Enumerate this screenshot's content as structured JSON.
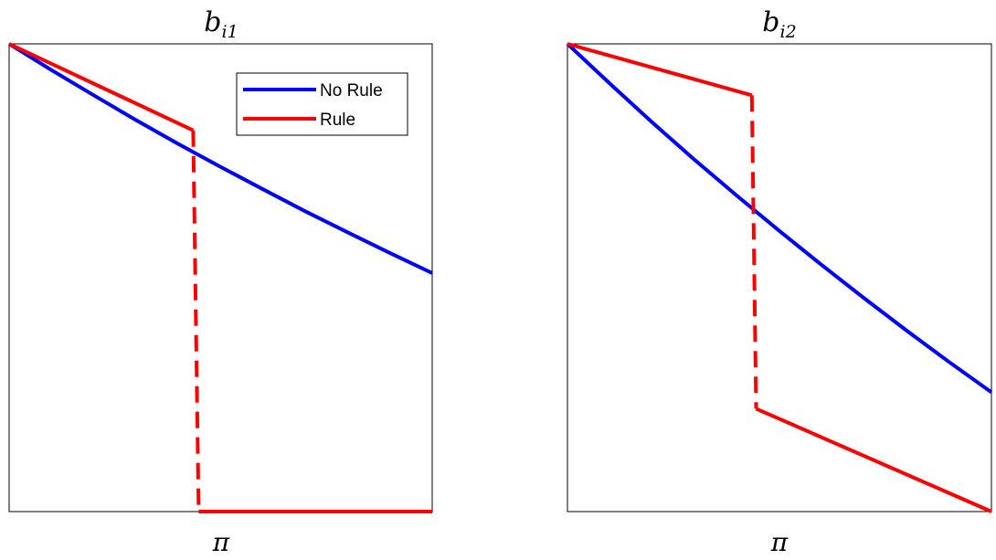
{
  "chart_data": [
    {
      "type": "line",
      "title_main": "b",
      "title_sub": "i1",
      "xlabel": "π",
      "ylabel": "",
      "xlim": [
        0,
        1
      ],
      "ylim": [
        0,
        1
      ],
      "ticks": false,
      "grid": false,
      "legend": {
        "placement": "top-right",
        "entries": [
          {
            "name": "No Rule",
            "color": "#0000ff"
          },
          {
            "name": "Rule",
            "color": "#ff0000"
          }
        ]
      },
      "series": [
        {
          "name": "No Rule",
          "color": "#0000ff",
          "style": "solid",
          "x": [
            0,
            0.1,
            0.2,
            0.3,
            0.4,
            0.5,
            0.6,
            0.7,
            0.8,
            0.9,
            1.0
          ],
          "y": [
            1.0,
            0.944,
            0.89,
            0.837,
            0.786,
            0.737,
            0.689,
            0.642,
            0.597,
            0.553,
            0.51
          ]
        },
        {
          "name": "Rule",
          "color": "#ff0000",
          "segments": [
            {
              "style": "solid",
              "x": [
                0,
                0.435
              ],
              "y": [
                1.0,
                0.815
              ]
            },
            {
              "style": "dashed",
              "x": [
                0.435,
                0.448
              ],
              "y": [
                0.815,
                0.0
              ]
            },
            {
              "style": "solid",
              "x": [
                0.448,
                1.0
              ],
              "y": [
                0.0,
                0.0
              ]
            }
          ]
        }
      ]
    },
    {
      "type": "line",
      "title_main": "b",
      "title_sub": "i2",
      "xlabel": "π",
      "ylabel": "",
      "xlim": [
        0,
        1
      ],
      "ylim": [
        0,
        1
      ],
      "ticks": false,
      "grid": false,
      "series": [
        {
          "name": "No Rule",
          "color": "#0000ff",
          "style": "solid",
          "x": [
            0,
            0.1,
            0.2,
            0.3,
            0.4,
            0.5,
            0.6,
            0.7,
            0.8,
            0.9,
            1.0
          ],
          "y": [
            1.0,
            0.915,
            0.832,
            0.752,
            0.675,
            0.6,
            0.527,
            0.456,
            0.387,
            0.32,
            0.255
          ]
        },
        {
          "name": "Rule",
          "color": "#ff0000",
          "segments": [
            {
              "style": "solid",
              "x": [
                0,
                0.435
              ],
              "y": [
                1.0,
                0.89
              ]
            },
            {
              "style": "dashed",
              "x": [
                0.435,
                0.445
              ],
              "y": [
                0.89,
                0.22
              ]
            },
            {
              "style": "solid",
              "x": [
                0.445,
                1.0
              ],
              "y": [
                0.22,
                0.0
              ]
            }
          ]
        }
      ]
    }
  ]
}
